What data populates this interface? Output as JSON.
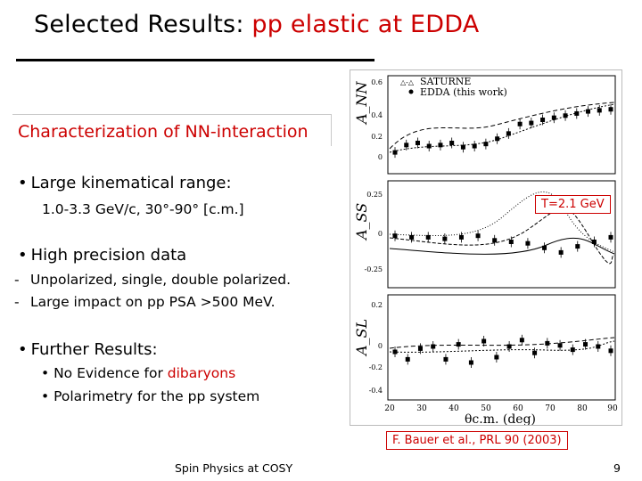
{
  "title": {
    "plain": "Selected Results: ",
    "accent": "pp elastic at EDDA"
  },
  "subtitle": "Characterization of NN-interaction",
  "bullets": {
    "range_label": "Large kinematical range:",
    "range_detail": "1.0-3.3 GeV/c, 30°-90° [c.m.]",
    "precision_label": "High precision data",
    "dash1": "Unpolarized, single, double polarized.",
    "dash2": "Large impact on pp PSA >500 MeV.",
    "further_label": "Further Results:",
    "further1_pre": "No Evidence for ",
    "further1_red": "dibaryons",
    "further2": "Polarimetry for the pp system"
  },
  "figure": {
    "legend1": "SATURNE",
    "legend2": "EDDA (this work)",
    "axis_label_top": "A_NN",
    "axis_label_mid": "A_SS",
    "axis_label_bot": "A_SL",
    "x_label": "θc.m. (deg)",
    "x_ticks": [
      "20",
      "30",
      "40",
      "50",
      "60",
      "70",
      "80",
      "90"
    ],
    "top_ticks": [
      "0.6",
      "0.4",
      "0.2",
      "0"
    ],
    "mid_ticks": [
      "0.25",
      "0",
      "-0.25"
    ],
    "bot_ticks": [
      "0.2",
      "0",
      "-0.2",
      "-0.4"
    ],
    "energy_label": "T=2.1 GeV",
    "series": {
      "anns": [
        0.05,
        0.12,
        0.14,
        0.11,
        0.12,
        0.14,
        0.1,
        0.11,
        0.13,
        0.18,
        0.23,
        0.32,
        0.33,
        0.36,
        0.38,
        0.4,
        0.42,
        0.44,
        0.45,
        0.46
      ],
      "ass": [
        -0.01,
        -0.02,
        -0.02,
        -0.03,
        -0.02,
        -0.01,
        -0.04,
        -0.05,
        -0.06,
        -0.09,
        -0.12,
        -0.08,
        -0.05,
        -0.02
      ],
      "asl": [
        -0.05,
        -0.12,
        -0.02,
        0.0,
        -0.12,
        0.02,
        -0.15,
        0.05,
        -0.1,
        0.0,
        0.06,
        -0.06,
        0.03,
        0.01,
        -0.03,
        0.02,
        0.0,
        -0.04
      ]
    }
  },
  "citation": "F. Bauer et al., PRL 90 (2003)",
  "footer": {
    "center": "Spin Physics at COSY",
    "page": "9"
  },
  "colors": {
    "accent": "#cc0000",
    "text": "#000000"
  }
}
